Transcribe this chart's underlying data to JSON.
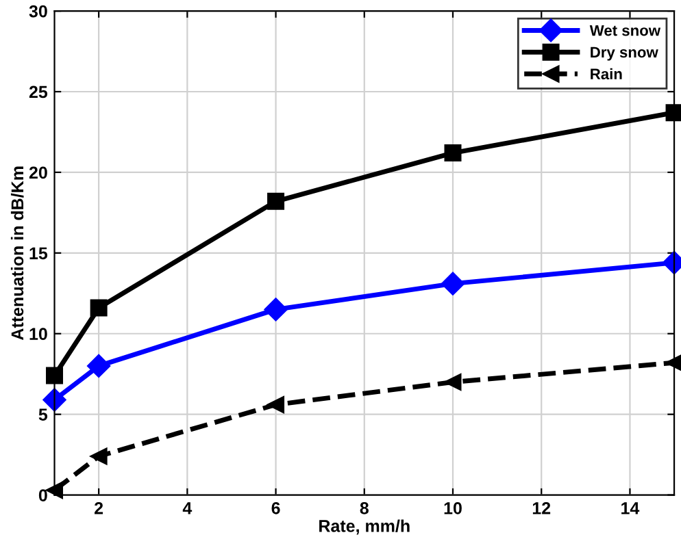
{
  "chart_data": {
    "type": "line",
    "xlabel": "Rate, mm/h",
    "ylabel": "Attenuation in dB/Km",
    "x": [
      1,
      2,
      6,
      10,
      15
    ],
    "series": [
      {
        "name": "Wet snow",
        "color": "#0000ff",
        "marker": "diamond",
        "line_style": "solid",
        "values": [
          5.9,
          8.0,
          11.5,
          13.1,
          14.4
        ]
      },
      {
        "name": "Dry snow",
        "color": "#000000",
        "marker": "square",
        "line_style": "solid",
        "values": [
          7.4,
          11.6,
          18.2,
          21.2,
          23.7
        ]
      },
      {
        "name": "Rain",
        "color": "#000000",
        "marker": "triangle",
        "line_style": "dashed",
        "values": [
          0.3,
          2.4,
          5.6,
          7.0,
          8.2
        ]
      }
    ],
    "xlim": [
      1,
      15
    ],
    "xticks": [
      2,
      4,
      6,
      8,
      10,
      12,
      14
    ],
    "ylim": [
      0,
      30
    ],
    "yticks": [
      0,
      5,
      10,
      15,
      20,
      25,
      30
    ],
    "grid": true,
    "legend": "top right"
  }
}
